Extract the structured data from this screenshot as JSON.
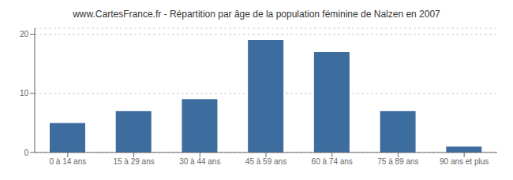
{
  "chart_data": {
    "type": "bar",
    "title": "www.CartesFrance.fr - Répartition par âge de la population féminine de Nalzen en 2007",
    "categories": [
      "0 à 14 ans",
      "15 à 29 ans",
      "30 à 44 ans",
      "45 à 59 ans",
      "60 à 74 ans",
      "75 à 89 ans",
      "90 ans et plus"
    ],
    "values": [
      5,
      7,
      9,
      19,
      17,
      7,
      1
    ],
    "color": "#3d6d9e",
    "ylim": [
      0,
      21
    ],
    "yticks": [
      0,
      10,
      20
    ],
    "grid": true
  }
}
